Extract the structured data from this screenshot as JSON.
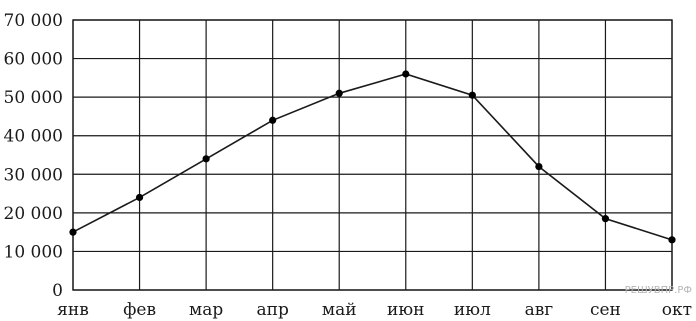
{
  "chart_data": {
    "type": "line",
    "categories": [
      "янв",
      "фев",
      "мар",
      "апр",
      "май",
      "июн",
      "июл",
      "авг",
      "сен",
      "окт"
    ],
    "series": [
      {
        "values": [
          15000,
          24000,
          34000,
          44000,
          51000,
          56000,
          50500,
          32000,
          18500,
          13000
        ]
      }
    ],
    "ylim": [
      0,
      70000
    ],
    "yticks": [
      0,
      10000,
      20000,
      30000,
      40000,
      50000,
      60000,
      70000
    ],
    "ytick_labels": [
      "0",
      "10 000",
      "20 000",
      "30 000",
      "40 000",
      "50 000",
      "60 000",
      "70 000"
    ],
    "grid": true,
    "title": "",
    "xlabel": "",
    "ylabel": "",
    "line_color": "#1a1a1a",
    "marker_color": "#000000"
  },
  "watermark": "РЕШУВПР.РФ"
}
